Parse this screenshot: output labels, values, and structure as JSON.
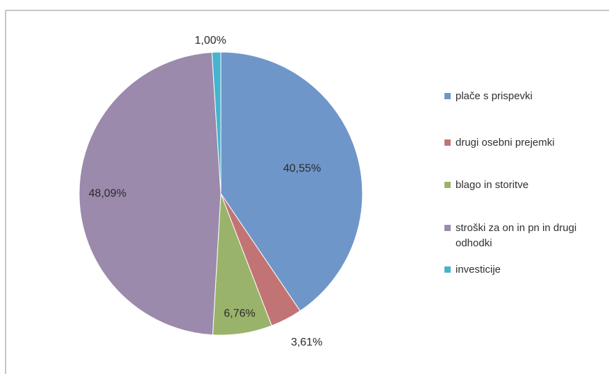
{
  "chart_data": {
    "type": "pie",
    "title": "",
    "slices": [
      {
        "label": "plače s prispevki",
        "value": 40.55,
        "value_label": "40,55%",
        "color": "#6f96c9"
      },
      {
        "label": "drugi osebni prejemki",
        "value": 3.61,
        "value_label": "3,61%",
        "color": "#c27474"
      },
      {
        "label": "blago in storitve",
        "value": 6.76,
        "value_label": "6,76%",
        "color": "#9ab36a"
      },
      {
        "label": "stroški za on in pn in drugi odhodki",
        "value": 48.09,
        "value_label": "48,09%",
        "color": "#9b8aac"
      },
      {
        "label": "investicije",
        "value": 1.0,
        "value_label": "1,00%",
        "color": "#46b3cf"
      }
    ],
    "start_angle": "12 o'clock",
    "direction": "clockwise",
    "legend_position": "right"
  }
}
